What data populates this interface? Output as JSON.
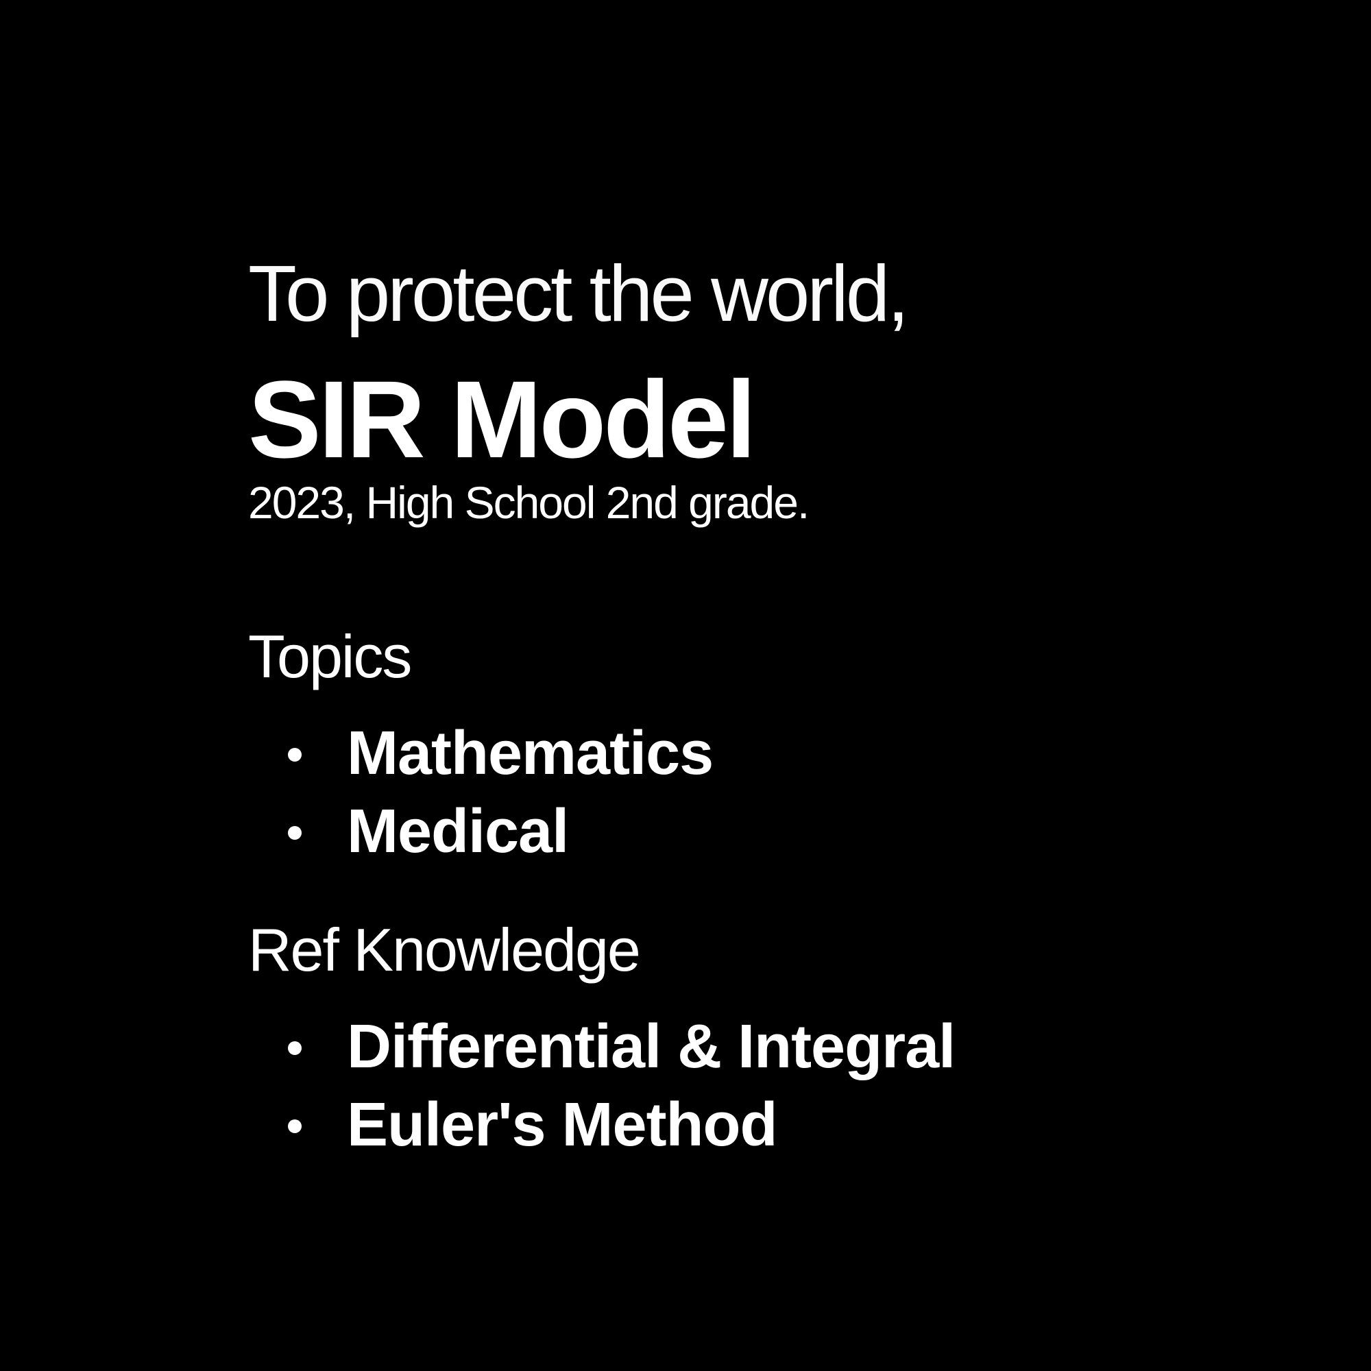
{
  "tagline": "To protect the world,",
  "title": "SIR Model",
  "subtitle": "2023, High School 2nd grade.",
  "sections": {
    "topics": {
      "heading": "Topics",
      "items": [
        "Mathematics",
        "Medical"
      ]
    },
    "ref_knowledge": {
      "heading": "Ref Knowledge",
      "items": [
        "Differential & Integral",
        "Euler's Method"
      ]
    }
  },
  "colors": {
    "background": "#000000",
    "text": "#ffffff"
  }
}
